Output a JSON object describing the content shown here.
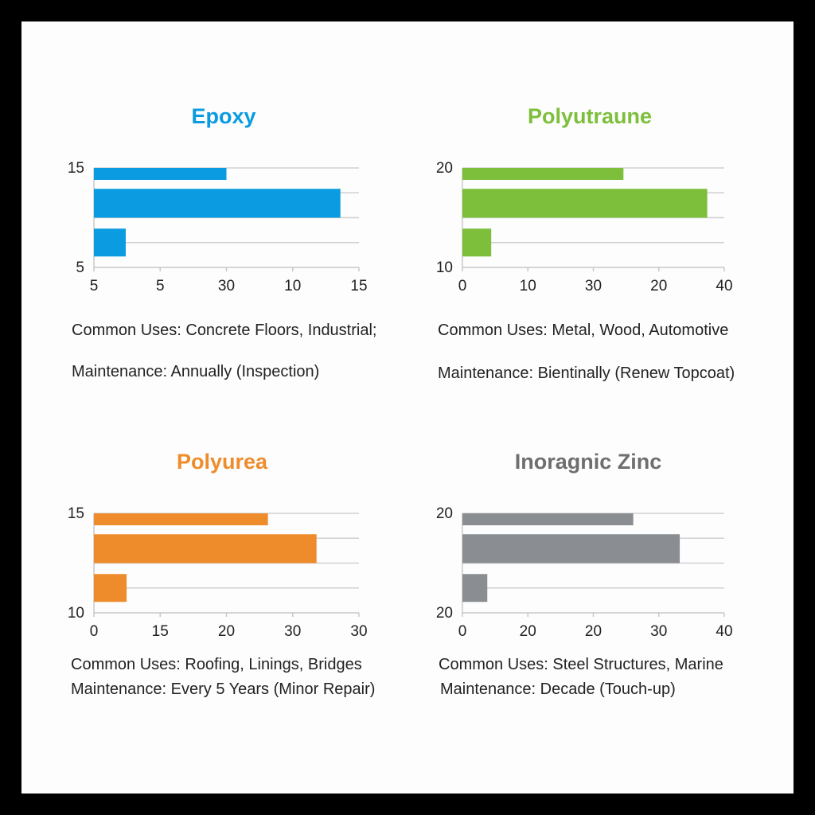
{
  "chart_data": [
    {
      "type": "bar",
      "orientation": "horizontal",
      "title": "Epoxy",
      "color": "#0a9be0",
      "x_tick_labels": [
        "5",
        "5",
        "30",
        "10",
        "15"
      ],
      "y_tick_labels": [
        "15",
        "5"
      ],
      "xlim": [
        5,
        15
      ],
      "values": [
        10,
        14.3,
        6.2
      ],
      "notes": [
        "Common Uses: Concrete Floors, Industrial;",
        "Maintenance: Annually (Inspection)"
      ]
    },
    {
      "type": "bar",
      "orientation": "horizontal",
      "title": "Polyutraune",
      "color": "#7dbf3b",
      "x_tick_labels": [
        "0",
        "10",
        "30",
        "20",
        "40"
      ],
      "y_tick_labels": [
        "20",
        "10"
      ],
      "xlim": [
        0,
        40
      ],
      "values": [
        24.6,
        37.4,
        4.4
      ],
      "notes": [
        "Common Uses: Metal, Wood, Automotive",
        "Maintenance: Bientinally (Renew Topcoat)"
      ]
    },
    {
      "type": "bar",
      "orientation": "horizontal",
      "title": "Polyurea",
      "color": "#ee8c2c",
      "x_tick_labels": [
        "0",
        "15",
        "20",
        "30",
        "30"
      ],
      "y_tick_labels": [
        "15",
        "10"
      ],
      "xlim": [
        0,
        30
      ],
      "values": [
        19.7,
        25.2,
        3.7
      ],
      "notes": [
        "Common Uses: Roofing, Linings, Bridges",
        "Maintenance: Every 5 Years (Minor Repair)"
      ]
    },
    {
      "type": "bar",
      "orientation": "horizontal",
      "title": "Inoragnic Zinc",
      "color": "#8a8d91",
      "x_tick_labels": [
        "0",
        "20",
        "20",
        "30",
        "40"
      ],
      "y_tick_labels": [
        "20",
        "20"
      ],
      "xlim": [
        0,
        40
      ],
      "values": [
        26.1,
        33.2,
        3.8
      ],
      "notes": [
        "Common Uses: Steel Structures, Marine",
        "Maintenance: Decade (Touch-up)"
      ]
    }
  ],
  "title_colors": [
    "#0a9be0",
    "#7dbf3b",
    "#ee8c2c",
    "#6e6e6e"
  ]
}
